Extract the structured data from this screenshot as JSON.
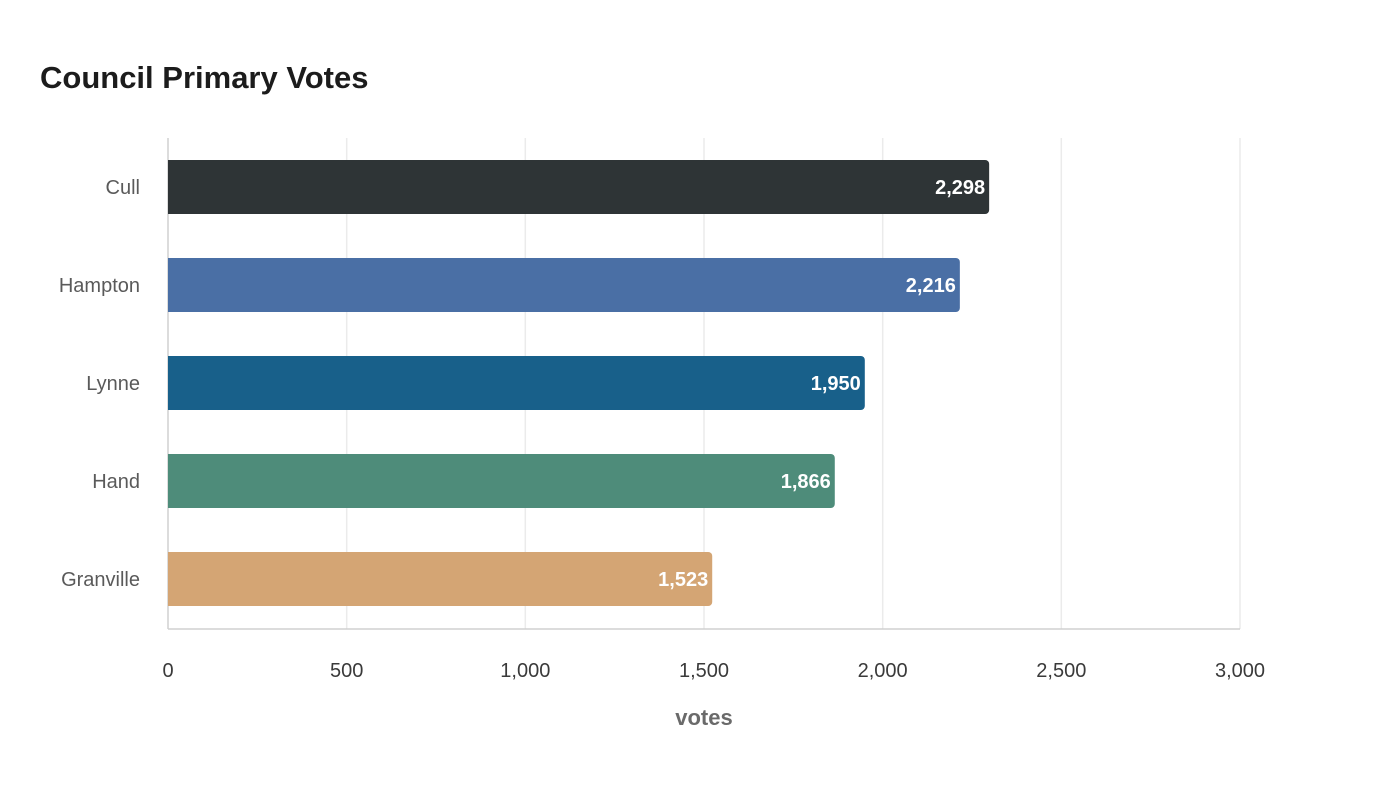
{
  "chart_data": {
    "type": "bar",
    "orientation": "horizontal",
    "title": "Council Primary Votes",
    "xlabel": "votes",
    "ylabel": "",
    "categories": [
      "Cull",
      "Hampton",
      "Lynne",
      "Hand",
      "Granville"
    ],
    "values": [
      2298,
      2216,
      1950,
      1866,
      1523
    ],
    "colors": [
      "#2e3436",
      "#4a6fa5",
      "#18608a",
      "#4e8c7a",
      "#d4a574"
    ],
    "xlim": [
      0,
      3000
    ],
    "xticks": [
      0,
      500,
      1000,
      1500,
      2000,
      2500,
      3000
    ],
    "xtick_labels": [
      "0",
      "500",
      "1,000",
      "1,500",
      "2,000",
      "2,500",
      "3,000"
    ],
    "grid": "vertical",
    "legend": "none"
  }
}
